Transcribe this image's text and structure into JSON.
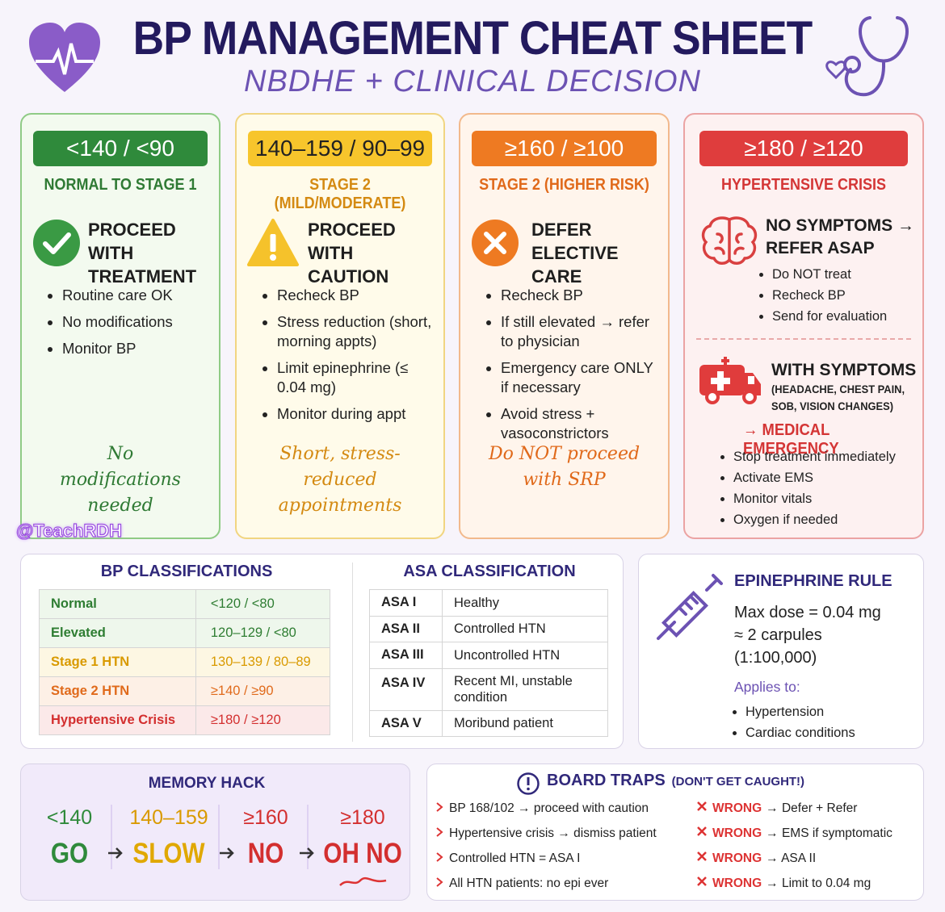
{
  "header": {
    "title": "BP MANAGEMENT CHEAT SHEET",
    "subtitle": "NBDHE + CLINICAL DECISION",
    "watermark": "@TeachRDH"
  },
  "columns": [
    {
      "range": "<140 / <90",
      "stage": "NORMAL TO STAGE 1",
      "action": "PROCEED WITH TREATMENT",
      "bullets": [
        "Routine care OK",
        "No modifications",
        "Monitor BP"
      ],
      "note": "No modifications needed"
    },
    {
      "range": "140–159 / 90–99",
      "stage": "STAGE 2 (MILD/MODERATE)",
      "action": "PROCEED WITH CAUTION",
      "bullets": [
        "Recheck BP",
        "Stress reduction (short, morning appts)",
        "Limit epinephrine (≤ 0.04 mg)",
        "Monitor during appt"
      ],
      "note": "Short, stress-reduced appointments"
    },
    {
      "range": "≥160 / ≥100",
      "stage": "STAGE 2 (HIGHER RISK)",
      "action": "DEFER ELECTIVE CARE",
      "bullets": [
        "Recheck BP",
        "If still elevated → refer to physician",
        "Emergency care ONLY if necessary",
        "Avoid stress + vasoconstrictors"
      ],
      "note": "Do NOT proceed with SRP"
    }
  ],
  "crisis": {
    "range": "≥180 / ≥120",
    "stage": "HYPERTENSIVE CRISIS",
    "no_symptoms": {
      "title": "NO SYMPTOMS → REFER ASAP",
      "bullets": [
        "Do NOT treat",
        "Recheck BP",
        "Send for evaluation"
      ]
    },
    "with_symptoms": {
      "title": "WITH SYMPTOMS",
      "detail": "(HEADACHE, CHEST PAIN, SOB, VISION CHANGES)",
      "result": "→ MEDICAL EMERGENCY",
      "bullets": [
        "Stop treatment immediately",
        "Activate EMS",
        "Monitor vitals",
        "Oxygen if needed"
      ]
    }
  },
  "bp_classifications": {
    "title": "BP CLASSIFICATIONS",
    "rows": [
      [
        "Normal",
        "<120 / <80"
      ],
      [
        "Elevated",
        "120–129 / <80"
      ],
      [
        "Stage 1 HTN",
        "130–139 / 80–89"
      ],
      [
        "Stage 2 HTN",
        "≥140 / ≥90"
      ],
      [
        "Hypertensive Crisis",
        "≥180 / ≥120"
      ]
    ]
  },
  "asa_classification": {
    "title": "ASA CLASSIFICATION",
    "rows": [
      [
        "ASA I",
        "Healthy"
      ],
      [
        "ASA II",
        "Controlled HTN"
      ],
      [
        "ASA III",
        "Uncontrolled HTN"
      ],
      [
        "ASA IV",
        "Recent MI, unstable condition"
      ],
      [
        "ASA V",
        "Moribund patient"
      ]
    ]
  },
  "epinephrine": {
    "title": "EPINEPHRINE RULE",
    "lines": [
      "Max dose = 0.04 mg",
      "≈ 2 carpules",
      "(1:100,000)"
    ],
    "applies_label": "Applies to:",
    "applies": [
      "Hypertension",
      "Cardiac conditions"
    ]
  },
  "memory_hack": {
    "title": "MEMORY HACK",
    "items": [
      {
        "range": "<140",
        "word": "GO"
      },
      {
        "range": "140–159",
        "word": "SLOW"
      },
      {
        "range": "≥160",
        "word": "NO"
      },
      {
        "range": "≥180",
        "word": "OH NO"
      }
    ]
  },
  "board_traps": {
    "title": "BOARD TRAPS",
    "subtitle": "(DON'T GET CAUGHT!)",
    "rows": [
      {
        "trap": "BP 168/102 → proceed with caution",
        "wrong": "WRONG",
        "correction": "→ Defer + Refer"
      },
      {
        "trap": "Hypertensive crisis → dismiss patient",
        "wrong": "WRONG",
        "correction": "→ EMS if symptomatic"
      },
      {
        "trap": "Controlled HTN = ASA I",
        "wrong": "WRONG",
        "correction": "→ ASA II"
      },
      {
        "trap": "All HTN patients: no epi ever",
        "wrong": "WRONG",
        "correction": "→ Limit to 0.04 mg"
      }
    ]
  }
}
